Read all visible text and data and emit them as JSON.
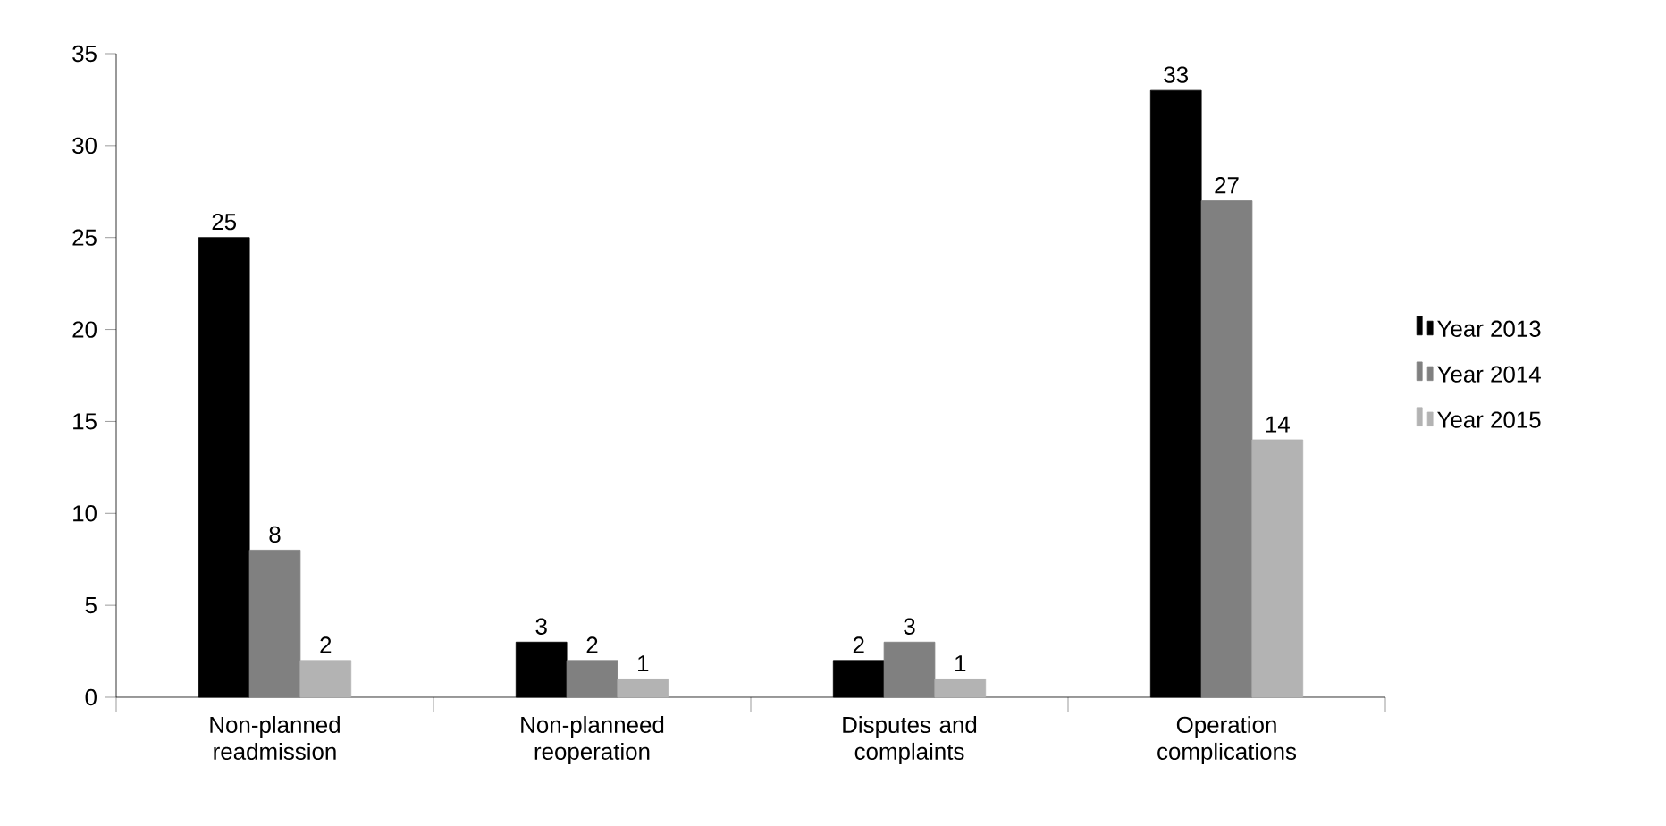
{
  "chart_data": {
    "type": "bar",
    "categories": [
      "Non-planned readmission",
      "Non-planneed reoperation",
      "Disputes and complaints",
      "Operation complications"
    ],
    "series": [
      {
        "name": "Year 2013",
        "color": "#000000",
        "values": [
          25,
          3,
          2,
          33
        ]
      },
      {
        "name": "Year 2014",
        "color": "#808080",
        "values": [
          8,
          2,
          3,
          27
        ]
      },
      {
        "name": "Year 2015",
        "color": "#b3b3b3",
        "values": [
          2,
          1,
          1,
          14
        ]
      }
    ],
    "ylim": [
      0,
      35
    ],
    "yticks": [
      0,
      5,
      10,
      15,
      20,
      25,
      30,
      35
    ],
    "data_labels": true,
    "grid": false,
    "legend": "right"
  }
}
